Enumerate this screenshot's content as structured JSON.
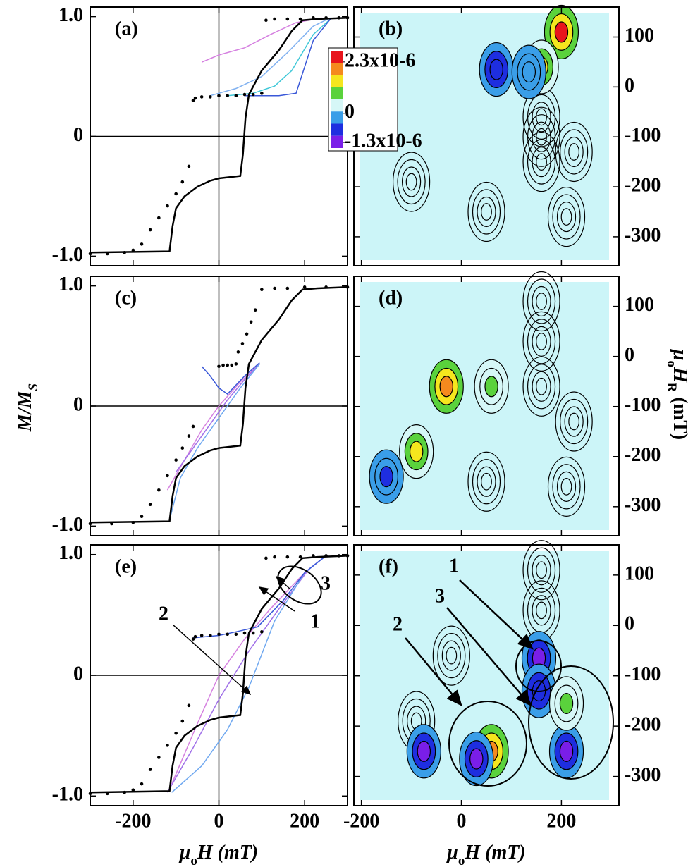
{
  "chart_data": [
    {
      "type": "line",
      "panel_label": "(a)",
      "xlim": [
        -300,
        300
      ],
      "ylim": [
        -1.08,
        1.08
      ],
      "xticks": [
        -200,
        0,
        200
      ],
      "yticks": [
        {
          "value": -1,
          "label": "-1.0"
        },
        0,
        {
          "value": 1,
          "label": "1.0"
        }
      ],
      "series": [
        {
          "color": "#d580e0",
          "x": [
            -40,
            0,
            60,
            120,
            180,
            240
          ],
          "values": [
            0.62,
            0.68,
            0.74,
            0.85,
            0.95,
            0.99
          ]
        },
        {
          "color": "#7fb0f0",
          "x": [
            -20,
            40,
            100,
            160,
            220,
            260
          ],
          "values": [
            0.34,
            0.4,
            0.5,
            0.7,
            0.92,
            0.99
          ]
        },
        {
          "color": "#40c8d8",
          "x": [
            20,
            80,
            130,
            170,
            220,
            260
          ],
          "values": [
            0.34,
            0.36,
            0.42,
            0.55,
            0.85,
            0.98
          ]
        },
        {
          "color": "#3a58d8",
          "x": [
            60,
            100,
            140,
            180,
            220,
            260
          ],
          "values": [
            0.34,
            0.34,
            0.34,
            0.36,
            0.8,
            0.98
          ]
        },
        {
          "color": "#000000",
          "x": [
            -300,
            -115,
            -108,
            -100,
            -80,
            -50,
            -20,
            0,
            50,
            56,
            62,
            70,
            100,
            140,
            170,
            195,
            230,
            300
          ],
          "values": [
            -0.97,
            -0.96,
            -0.75,
            -0.6,
            -0.5,
            -0.42,
            -0.37,
            -0.35,
            -0.33,
            -0.15,
            0.15,
            0.35,
            0.55,
            0.72,
            0.88,
            0.97,
            0.98,
            0.99
          ]
        },
        {
          "color": "#000000",
          "mode": "points",
          "x": [
            -300,
            -260,
            -220,
            -200,
            -180,
            -160,
            -140,
            -120,
            -100,
            -85,
            -70,
            -60,
            -55,
            -40,
            -20,
            0,
            20,
            40,
            60,
            80,
            100,
            110,
            130,
            160,
            190,
            220,
            250,
            280,
            300
          ],
          "values": [
            -0.98,
            -0.98,
            -0.97,
            -0.95,
            -0.9,
            -0.78,
            -0.68,
            -0.58,
            -0.48,
            -0.38,
            -0.25,
            0.3,
            0.32,
            0.33,
            0.33,
            0.34,
            0.34,
            0.34,
            0.35,
            0.35,
            0.36,
            0.97,
            0.98,
            0.98,
            0.98,
            0.99,
            0.99,
            0.99,
            0.99
          ]
        }
      ]
    },
    {
      "type": "contour",
      "panel_label": "(b)",
      "xlim": [
        -215,
        315
      ],
      "ylim": [
        -358,
        160
      ],
      "xticks": [
        -200,
        0,
        200
      ],
      "yticks": [
        -300,
        -200,
        -100,
        0,
        100
      ],
      "peaks": {
        "x": [
          200,
          160,
          70,
          135
        ],
        "y": [
          110,
          40,
          35,
          30
        ],
        "values": [
          2.3e-06,
          1.5e-06,
          -8e-07,
          -4e-07
        ]
      },
      "outline_peaks": {
        "x": [
          160,
          160,
          160,
          50,
          -100,
          225,
          210
        ],
        "y": [
          -60,
          -100,
          -150,
          -250,
          -190,
          -130,
          -260
        ]
      },
      "colorbar": {
        "lim": [
          -1.55e-06,
          2.8e-06
        ],
        "colors": [
          "#e8141c",
          "#f58a1e",
          "#f5e61e",
          "#5ad23c",
          "#d6f7f7",
          "#3a9ee8",
          "#1e2ee0",
          "#7a1ee8"
        ],
        "ticks": [
          {
            "value": 2.3e-06,
            "label": "2.3x10-6"
          },
          0,
          {
            "value": -1.3e-06,
            "label": "-1.3x10-6"
          }
        ]
      }
    },
    {
      "type": "line",
      "panel_label": "(c)",
      "xlim": [
        -300,
        300
      ],
      "ylim": [
        -1.08,
        1.08
      ],
      "xticks": [
        -200,
        0,
        200
      ],
      "yticks": [
        {
          "value": -1,
          "label": "-1.0"
        },
        0,
        {
          "value": 1,
          "label": "1.0"
        }
      ],
      "y_label": [
        "M/M",
        "S"
      ],
      "series": [
        {
          "color": "#d580e0",
          "x": [
            -120,
            -80,
            -40,
            0,
            50,
            95
          ],
          "values": [
            -0.7,
            -0.45,
            -0.2,
            0.0,
            0.2,
            0.35
          ]
        },
        {
          "color": "#a070e8",
          "x": [
            -100,
            -60,
            -20,
            20,
            60,
            95
          ],
          "values": [
            -0.55,
            -0.35,
            -0.15,
            0.05,
            0.22,
            0.35
          ]
        },
        {
          "color": "#6fa8f0",
          "x": [
            -115,
            -90,
            -50,
            0,
            50,
            95
          ],
          "values": [
            -0.95,
            -0.6,
            -0.35,
            -0.1,
            0.15,
            0.35
          ]
        },
        {
          "color": "#3a58d8",
          "x": [
            -40,
            -20,
            0,
            20,
            60,
            95
          ],
          "values": [
            0.33,
            0.25,
            0.15,
            0.1,
            0.25,
            0.36
          ]
        },
        {
          "color": "#000000",
          "x": [
            -300,
            -115,
            -108,
            -100,
            -80,
            -50,
            -20,
            0,
            50,
            56,
            62,
            70,
            100,
            140,
            170,
            195,
            230,
            300
          ],
          "values": [
            -0.97,
            -0.96,
            -0.75,
            -0.6,
            -0.5,
            -0.42,
            -0.37,
            -0.35,
            -0.33,
            -0.15,
            0.15,
            0.35,
            0.55,
            0.72,
            0.88,
            0.97,
            0.98,
            0.99
          ]
        },
        {
          "color": "#000000",
          "mode": "points",
          "x": [
            -300,
            -250,
            -200,
            -180,
            -160,
            -140,
            -120,
            -100,
            -85,
            -70,
            -60,
            0,
            10,
            20,
            30,
            40,
            45,
            55,
            65,
            75,
            85,
            100,
            130,
            160,
            200,
            250,
            300
          ],
          "values": [
            -0.98,
            -0.98,
            -0.97,
            -0.92,
            -0.82,
            -0.7,
            -0.58,
            -0.45,
            -0.35,
            -0.25,
            -0.17,
            0.33,
            0.34,
            0.34,
            0.34,
            0.35,
            0.45,
            0.52,
            0.6,
            0.7,
            0.8,
            0.97,
            0.98,
            0.98,
            0.99,
            0.99,
            0.99
          ]
        }
      ]
    },
    {
      "type": "contour",
      "panel_label": "(d)",
      "xlim": [
        -215,
        315
      ],
      "ylim": [
        -358,
        160
      ],
      "xticks": [
        -200,
        0,
        200
      ],
      "yticks": [
        -300,
        -200,
        -100,
        0,
        100
      ],
      "y_label": [
        "μ",
        "o",
        "H",
        "R",
        " (mT)"
      ],
      "peaks": {
        "x": [
          -30,
          -90,
          60,
          -150
        ],
        "y": [
          -60,
          -190,
          -60,
          -240
        ],
        "values": [
          2e-06,
          1.6e-06,
          8e-07,
          -5e-07
        ]
      },
      "outline_peaks": {
        "x": [
          160,
          160,
          160,
          50,
          225,
          210
        ],
        "y": [
          110,
          30,
          -60,
          -250,
          -130,
          -260
        ]
      }
    },
    {
      "type": "line",
      "panel_label": "(e)",
      "xlim": [
        -300,
        300
      ],
      "ylim": [
        -1.08,
        1.08
      ],
      "xticks": [
        -200,
        0,
        200
      ],
      "yticks": [
        {
          "value": -1,
          "label": "-1.0"
        },
        0,
        {
          "value": 1,
          "label": "1.0"
        }
      ],
      "x_label": [
        "μ",
        "o",
        "H (mT)"
      ],
      "annotations": [
        "1",
        "2",
        "3"
      ],
      "series": [
        {
          "color": "#d580e0",
          "x": [
            -110,
            -50,
            0,
            60,
            120,
            200,
            250
          ],
          "values": [
            -0.9,
            -0.4,
            0.0,
            0.3,
            0.55,
            0.85,
            0.99
          ]
        },
        {
          "color": "#a070e8",
          "x": [
            -120,
            -60,
            0,
            70,
            140,
            210,
            250
          ],
          "values": [
            -0.97,
            -0.6,
            -0.2,
            0.2,
            0.55,
            0.88,
            0.99
          ]
        },
        {
          "color": "#6fa8f0",
          "x": [
            -110,
            -40,
            20,
            70,
            130,
            200,
            250
          ],
          "values": [
            -0.97,
            -0.75,
            -0.45,
            -0.1,
            0.45,
            0.85,
            0.99
          ]
        },
        {
          "color": "#3a58d8",
          "x": [
            -60,
            0,
            40,
            90,
            150,
            200,
            250
          ],
          "values": [
            0.31,
            0.33,
            0.36,
            0.4,
            0.62,
            0.85,
            0.99
          ]
        },
        {
          "color": "#000000",
          "x": [
            -300,
            -115,
            -108,
            -100,
            -80,
            -50,
            -20,
            0,
            50,
            56,
            62,
            70,
            100,
            140,
            170,
            195,
            230,
            300
          ],
          "values": [
            -0.97,
            -0.96,
            -0.75,
            -0.6,
            -0.5,
            -0.42,
            -0.37,
            -0.35,
            -0.33,
            -0.15,
            0.15,
            0.35,
            0.55,
            0.72,
            0.88,
            0.97,
            0.98,
            0.99
          ]
        },
        {
          "color": "#000000",
          "mode": "points",
          "x": [
            -300,
            -260,
            -220,
            -200,
            -180,
            -160,
            -140,
            -120,
            -100,
            -85,
            -70,
            -60,
            -55,
            -40,
            -20,
            0,
            20,
            40,
            60,
            80,
            100,
            110,
            130,
            160,
            190,
            220,
            250,
            280,
            300
          ],
          "values": [
            -0.98,
            -0.98,
            -0.97,
            -0.95,
            -0.9,
            -0.78,
            -0.68,
            -0.58,
            -0.48,
            -0.38,
            -0.25,
            0.3,
            0.32,
            0.33,
            0.33,
            0.34,
            0.34,
            0.34,
            0.35,
            0.35,
            0.36,
            0.97,
            0.98,
            0.98,
            0.98,
            0.99,
            0.99,
            0.99,
            0.99
          ]
        }
      ]
    },
    {
      "type": "contour",
      "panel_label": "(f)",
      "xlim": [
        -215,
        315
      ],
      "ylim": [
        -358,
        160
      ],
      "xticks": [
        -200,
        0,
        200
      ],
      "yticks": [
        -300,
        -200,
        -100,
        0,
        100
      ],
      "x_label": [
        "μ",
        "o",
        "H (mT)"
      ],
      "annotations": [
        "1",
        "2",
        "3"
      ],
      "peaks": {
        "x": [
          155,
          155,
          60,
          -75,
          30,
          210,
          210
        ],
        "y": [
          -65,
          -130,
          -250,
          -250,
          -265,
          -250,
          -155
        ],
        "values": [
          -1.3e-06,
          -1e-06,
          2e-06,
          -1.1e-06,
          -1.2e-06,
          -1.1e-06,
          8e-07
        ]
      },
      "outline_peaks": {
        "x": [
          160,
          160,
          -20,
          -90
        ],
        "y": [
          110,
          30,
          -60,
          -190
        ]
      }
    }
  ]
}
